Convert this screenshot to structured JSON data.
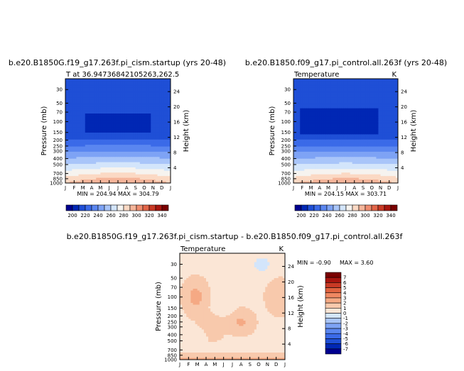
{
  "chart_data": [
    {
      "type": "heatmap",
      "panel": "top-left",
      "title": "b.e20.B1850G.f19_g17.263f.pi_cism.startup (yrs 20-48)",
      "subtitle_left": "T at 36.94736842105263,262.5",
      "subtitle_right": "",
      "ylabel": "Pressure (mb)",
      "ylabel_right": "Height (km)",
      "stats": "MIN = 204.94   MAX = 304.79",
      "months": [
        "J",
        "F",
        "M",
        "A",
        "M",
        "J",
        "J",
        "A",
        "S",
        "O",
        "N",
        "D",
        "J"
      ],
      "pressure_ticks": [
        30,
        50,
        70,
        100,
        150,
        200,
        250,
        300,
        400,
        500,
        700,
        850,
        1000
      ],
      "height_ticks": [
        4,
        8,
        12,
        16,
        20,
        24
      ],
      "ylim_mb": [
        20,
        1000
      ],
      "levels": [
        200,
        210,
        220,
        230,
        240,
        250,
        260,
        270,
        280,
        290,
        300,
        310,
        320,
        330,
        340
      ],
      "level_labels": [
        "200",
        "220",
        "240",
        "260",
        "280",
        "300",
        "320",
        "340"
      ],
      "colors": [
        "#00008f",
        "#0027b4",
        "#1f4fd6",
        "#3b6ae8",
        "#5a86f0",
        "#7ea3f5",
        "#a9c5f9",
        "#d3e5fb",
        "#f6f3ef",
        "#fbd9c4",
        "#f5b59a",
        "#ef8d70",
        "#e26548",
        "#c93a25",
        "#a8150f",
        "#7a0000"
      ]
    },
    {
      "type": "heatmap",
      "panel": "top-right",
      "title": "b.e20.B1850.f09_g17.pi_control.all.263f (yrs 20-48)",
      "subtitle_left": "Temperature",
      "subtitle_right": "K",
      "ylabel": "Pressure (mb)",
      "ylabel_right": "Height (km)",
      "stats": "MIN = 204.15   MAX = 303.71",
      "months": [
        "J",
        "F",
        "M",
        "A",
        "M",
        "J",
        "J",
        "A",
        "S",
        "O",
        "N",
        "D",
        "J"
      ],
      "pressure_ticks": [
        30,
        50,
        70,
        100,
        150,
        200,
        250,
        300,
        400,
        500,
        700,
        850,
        1000
      ],
      "height_ticks": [
        4,
        8,
        12,
        16,
        20,
        24
      ],
      "ylim_mb": [
        20,
        1000
      ],
      "levels": [
        200,
        210,
        220,
        230,
        240,
        250,
        260,
        270,
        280,
        290,
        300,
        310,
        320,
        330,
        340
      ],
      "level_labels": [
        "200",
        "220",
        "240",
        "260",
        "280",
        "300",
        "320",
        "340"
      ],
      "colors": [
        "#00008f",
        "#0027b4",
        "#1f4fd6",
        "#3b6ae8",
        "#5a86f0",
        "#7ea3f5",
        "#a9c5f9",
        "#d3e5fb",
        "#f6f3ef",
        "#fbd9c4",
        "#f5b59a",
        "#ef8d70",
        "#e26548",
        "#c93a25",
        "#a8150f",
        "#7a0000"
      ]
    },
    {
      "type": "heatmap",
      "panel": "bottom",
      "title": "b.e20.B1850G.f19_g17.263f.pi_cism.startup - b.e20.B1850.f09_g17.pi_control.all.263f",
      "subtitle_left": "Temperature",
      "subtitle_right": "K",
      "ylabel": "Pressure (mb)",
      "ylabel_right": "Height (km)",
      "stats_min": "MIN =   -0.90",
      "stats_max": "MAX =     3.60",
      "months": [
        "J",
        "F",
        "M",
        "A",
        "M",
        "J",
        "J",
        "A",
        "S",
        "O",
        "N",
        "D",
        "J"
      ],
      "pressure_ticks": [
        30,
        50,
        70,
        100,
        150,
        200,
        250,
        300,
        400,
        500,
        700,
        850,
        1000
      ],
      "height_ticks": [
        4,
        8,
        12,
        16,
        20,
        24
      ],
      "ylim_mb": [
        20,
        1000
      ],
      "levels": [
        -7,
        -6,
        -5,
        -4,
        -3,
        -2,
        -1,
        0,
        1,
        2,
        3,
        4,
        5,
        6,
        7
      ],
      "level_labels": [
        "7",
        "6",
        "5",
        "4",
        "3",
        "2",
        "1",
        "0",
        "-1",
        "-2",
        "-3",
        "-4",
        "-5",
        "-6",
        "-7"
      ],
      "colors": [
        "#00008f",
        "#0027b4",
        "#1f4fd6",
        "#3b6ae8",
        "#5a86f0",
        "#7ea3f5",
        "#a9c5f9",
        "#d3e5fb",
        "#fbe6d6",
        "#f8c9ac",
        "#f5a984",
        "#ef8862",
        "#e06340",
        "#c93a25",
        "#a8150f",
        "#7a0000"
      ]
    }
  ]
}
